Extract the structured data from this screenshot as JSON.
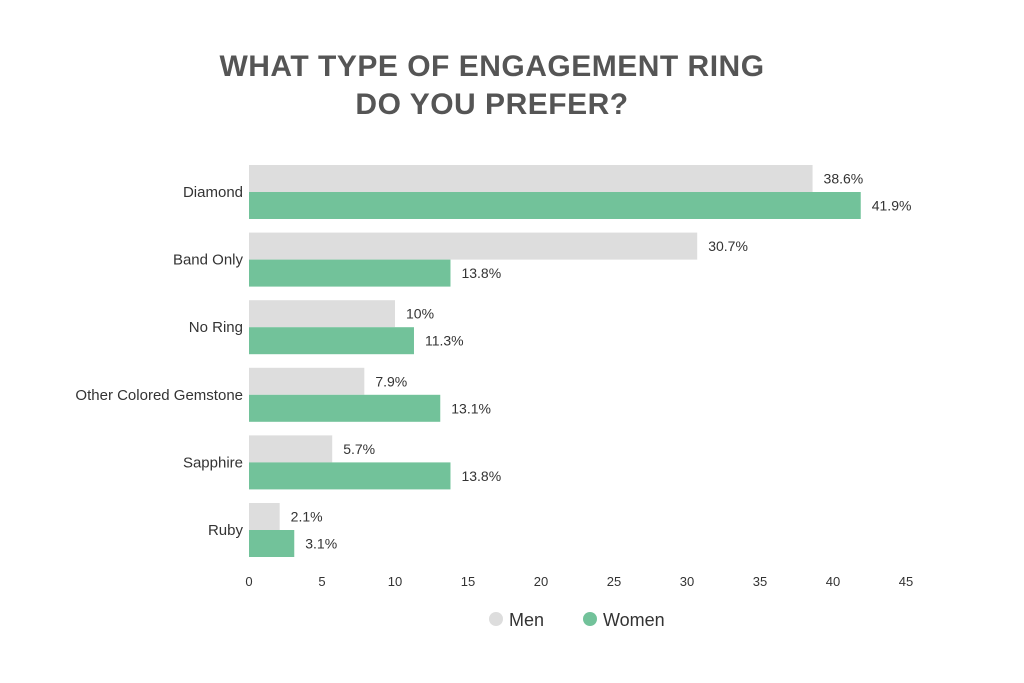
{
  "chart_data": {
    "type": "bar",
    "orientation": "horizontal",
    "title": [
      "WHAT TYPE OF ENGAGEMENT RING",
      "DO YOU PREFER?"
    ],
    "categories": [
      "Diamond",
      "Band Only",
      "No Ring",
      "Other Colored Gemstone",
      "Sapphire",
      "Ruby"
    ],
    "series": [
      {
        "name": "Men",
        "color": "#dddddd",
        "values": [
          38.6,
          30.7,
          10,
          7.9,
          5.7,
          2.1
        ],
        "labels": [
          "38.6%",
          "30.7%",
          "10%",
          "7.9%",
          "5.7%",
          "2.1%"
        ]
      },
      {
        "name": "Women",
        "color": "#72c29a",
        "values": [
          41.9,
          13.8,
          11.3,
          13.1,
          13.8,
          3.1
        ],
        "labels": [
          "41.9%",
          "13.8%",
          "11.3%",
          "13.1%",
          "13.8%",
          "3.1%"
        ]
      }
    ],
    "xlim": [
      0,
      45
    ],
    "xticks": [
      0,
      5,
      10,
      15,
      20,
      25,
      30,
      35,
      40,
      45
    ],
    "grid": false,
    "legend_position": "bottom-center"
  }
}
